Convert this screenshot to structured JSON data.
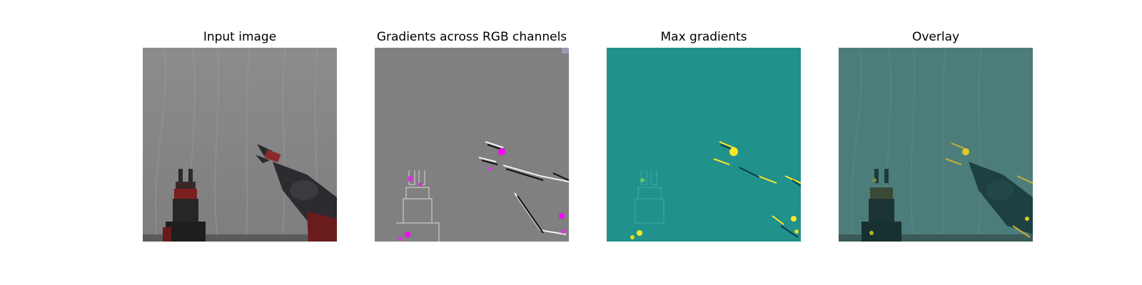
{
  "figure": {
    "panels": [
      {
        "title": "Input image"
      },
      {
        "title": "Gradients across RGB channels"
      },
      {
        "title": "Max gradients"
      },
      {
        "title": "Overlay"
      }
    ]
  },
  "colors": {
    "background": "#ffffff",
    "input_backdrop": "#8e8e8e",
    "gradient_neutral": "#808080",
    "gradient_highlight": "#ff00ff",
    "max_gradient_base": "#21918c",
    "max_gradient_peak": "#fde725",
    "overlay_base": "#4c7d7b"
  }
}
